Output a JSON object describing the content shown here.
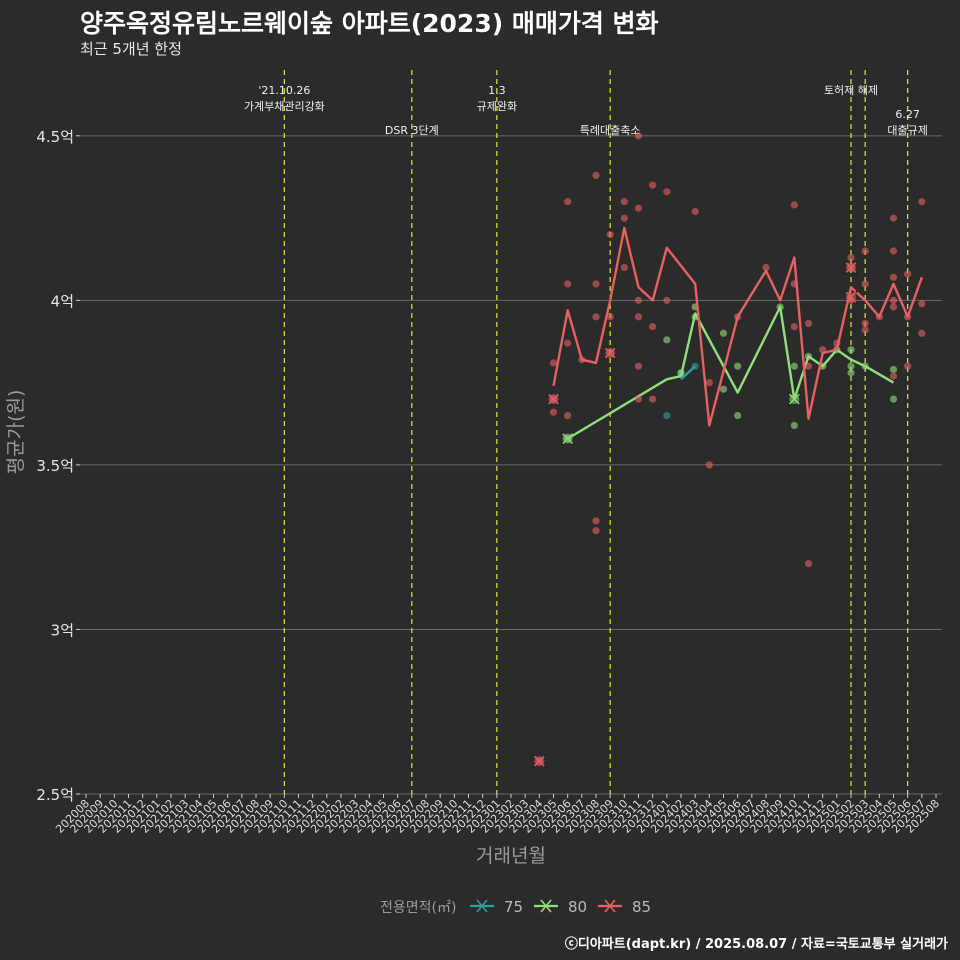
{
  "header": {
    "title": "양주옥정유림노르웨이숲 아파트(2023) 매매가격 변화",
    "subtitle": "최근 5개년 한정"
  },
  "footer": {
    "caption": "ⓒ디아파트(dapt.kr) / 2025.08.07 / 자료=국토교통부 실거래가"
  },
  "colors": {
    "background": "#2b2b2b",
    "grid": "#6a6a6a",
    "event_line": "#e8e82a",
    "s75": "#2b9e9e",
    "s80": "#8fe07a",
    "s85": "#e86060"
  },
  "chart_data": {
    "type": "line",
    "xlabel": "거래년월",
    "ylabel": "평균가(원)",
    "ylim": [
      2.5,
      4.7
    ],
    "yticks": [
      {
        "value": 2.5,
        "label": "2.5억"
      },
      {
        "value": 3.0,
        "label": "3억"
      },
      {
        "value": 3.5,
        "label": "3.5억"
      },
      {
        "value": 4.0,
        "label": "4억"
      },
      {
        "value": 4.5,
        "label": "4.5억"
      }
    ],
    "x": [
      "202008",
      "202009",
      "202010",
      "202011",
      "202012",
      "202101",
      "202102",
      "202103",
      "202104",
      "202105",
      "202106",
      "202107",
      "202108",
      "202109",
      "202110",
      "202111",
      "202112",
      "202201",
      "202202",
      "202203",
      "202204",
      "202205",
      "202206",
      "202207",
      "202208",
      "202209",
      "202210",
      "202211",
      "202212",
      "202301",
      "202302",
      "202303",
      "202304",
      "202305",
      "202306",
      "202307",
      "202308",
      "202309",
      "202310",
      "202311",
      "202312",
      "202401",
      "202402",
      "202403",
      "202404",
      "202405",
      "202406",
      "202407",
      "202408",
      "202409",
      "202410",
      "202411",
      "202412",
      "202501",
      "202502",
      "202503",
      "202504",
      "202505",
      "202506",
      "202507",
      "202508"
    ],
    "events": [
      {
        "month": "202110",
        "label": [
          "'21.10.26",
          "가계부채관리강화"
        ],
        "level": 1
      },
      {
        "month": "202207",
        "label": [
          "DSR 3단계"
        ],
        "level": 2
      },
      {
        "month": "202301",
        "label": [
          "1.3",
          "규제완화"
        ],
        "level": 1
      },
      {
        "month": "202309",
        "label": [
          "특례대출축소"
        ],
        "level": 2
      },
      {
        "month": "202502",
        "label": [
          "토허제 해제"
        ],
        "level": 1
      },
      {
        "month": "202503",
        "label": [],
        "level": 1
      },
      {
        "month": "202506",
        "label": [
          "6.27",
          "대출규제"
        ],
        "level": 2
      }
    ],
    "legend": {
      "title": "전용면적(㎡)",
      "position": "bottom"
    },
    "series": [
      {
        "name": "75",
        "color": "#2b9e9e",
        "line": [
          [
            "202402",
            3.76
          ],
          [
            "202403",
            3.8
          ]
        ],
        "points": [
          [
            "202401",
            3.65
          ],
          [
            "202402",
            3.78
          ],
          [
            "202403",
            3.8
          ]
        ],
        "crosses": []
      },
      {
        "name": "80",
        "color": "#8fe07a",
        "line": [
          [
            "202306",
            3.58
          ],
          [
            "202401",
            3.76
          ],
          [
            "202402",
            3.77
          ],
          [
            "202403",
            3.96
          ],
          [
            "202406",
            3.72
          ],
          [
            "202409",
            3.98
          ],
          [
            "202410",
            3.7
          ],
          [
            "202411",
            3.83
          ],
          [
            "202412",
            3.8
          ],
          [
            "202501",
            3.85
          ],
          [
            "202502",
            3.82
          ],
          [
            "202503",
            3.8
          ],
          [
            "202505",
            3.75
          ]
        ],
        "points": [
          [
            "202306",
            3.58
          ],
          [
            "202401",
            3.88
          ],
          [
            "202402",
            3.78
          ],
          [
            "202403",
            3.95
          ],
          [
            "202403",
            3.98
          ],
          [
            "202405",
            3.9
          ],
          [
            "202405",
            3.73
          ],
          [
            "202406",
            3.8
          ],
          [
            "202406",
            3.65
          ],
          [
            "202409",
            3.98
          ],
          [
            "202410",
            3.62
          ],
          [
            "202410",
            3.8
          ],
          [
            "202411",
            3.83
          ],
          [
            "202412",
            3.8
          ],
          [
            "202501",
            3.85
          ],
          [
            "202502",
            3.8
          ],
          [
            "202502",
            3.78
          ],
          [
            "202502",
            3.85
          ],
          [
            "202503",
            3.8
          ],
          [
            "202505",
            3.79
          ],
          [
            "202505",
            3.7
          ]
        ],
        "crosses": [
          [
            "202306",
            3.58
          ],
          [
            "202410",
            3.7
          ]
        ]
      },
      {
        "name": "85",
        "color": "#e86060",
        "line": [
          [
            "202305",
            3.74
          ],
          [
            "202306",
            3.97
          ],
          [
            "202307",
            3.82
          ],
          [
            "202308",
            3.81
          ],
          [
            "202309",
            4.0
          ],
          [
            "202310",
            4.22
          ],
          [
            "202311",
            4.04
          ],
          [
            "202312",
            4.0
          ],
          [
            "202401",
            4.16
          ],
          [
            "202403",
            4.05
          ],
          [
            "202404",
            3.62
          ],
          [
            "202406",
            3.95
          ],
          [
            "202408",
            4.09
          ],
          [
            "202409",
            4.0
          ],
          [
            "202410",
            4.13
          ],
          [
            "202411",
            3.64
          ],
          [
            "202412",
            3.84
          ],
          [
            "202501",
            3.85
          ],
          [
            "202502",
            4.04
          ],
          [
            "202503",
            4.0
          ],
          [
            "202504",
            3.95
          ],
          [
            "202505",
            4.05
          ],
          [
            "202506",
            3.95
          ],
          [
            "202507",
            4.07
          ]
        ],
        "points": [
          [
            "202304",
            2.6
          ],
          [
            "202305",
            3.81
          ],
          [
            "202305",
            3.7
          ],
          [
            "202305",
            3.66
          ],
          [
            "202306",
            4.3
          ],
          [
            "202306",
            4.05
          ],
          [
            "202306",
            3.87
          ],
          [
            "202306",
            3.65
          ],
          [
            "202307",
            3.82
          ],
          [
            "202308",
            4.38
          ],
          [
            "202308",
            4.05
          ],
          [
            "202308",
            3.95
          ],
          [
            "202308",
            3.33
          ],
          [
            "202308",
            3.3
          ],
          [
            "202309",
            4.2
          ],
          [
            "202309",
            3.95
          ],
          [
            "202309",
            3.84
          ],
          [
            "202310",
            4.3
          ],
          [
            "202310",
            4.25
          ],
          [
            "202310",
            4.1
          ],
          [
            "202311",
            4.5
          ],
          [
            "202311",
            4.28
          ],
          [
            "202311",
            4.0
          ],
          [
            "202311",
            3.95
          ],
          [
            "202311",
            3.8
          ],
          [
            "202311",
            3.7
          ],
          [
            "202312",
            4.35
          ],
          [
            "202312",
            3.92
          ],
          [
            "202312",
            3.7
          ],
          [
            "202401",
            4.33
          ],
          [
            "202401",
            4.0
          ],
          [
            "202403",
            4.27
          ],
          [
            "202404",
            3.75
          ],
          [
            "202404",
            3.5
          ],
          [
            "202406",
            3.95
          ],
          [
            "202408",
            4.1
          ],
          [
            "202410",
            4.29
          ],
          [
            "202410",
            4.05
          ],
          [
            "202410",
            3.92
          ],
          [
            "202411",
            3.93
          ],
          [
            "202411",
            3.8
          ],
          [
            "202411",
            3.2
          ],
          [
            "202412",
            3.85
          ],
          [
            "202501",
            3.87
          ],
          [
            "202502",
            4.13
          ],
          [
            "202502",
            4.1
          ],
          [
            "202502",
            4.0
          ],
          [
            "202503",
            4.15
          ],
          [
            "202503",
            4.05
          ],
          [
            "202503",
            3.93
          ],
          [
            "202503",
            3.91
          ],
          [
            "202504",
            3.95
          ],
          [
            "202505",
            4.25
          ],
          [
            "202505",
            4.15
          ],
          [
            "202505",
            4.07
          ],
          [
            "202505",
            4.0
          ],
          [
            "202505",
            3.98
          ],
          [
            "202505",
            3.77
          ],
          [
            "202506",
            4.08
          ],
          [
            "202506",
            3.95
          ],
          [
            "202506",
            3.8
          ],
          [
            "202507",
            4.3
          ],
          [
            "202507",
            3.99
          ],
          [
            "202507",
            3.9
          ]
        ],
        "crosses": [
          [
            "202304",
            2.6
          ],
          [
            "202305",
            3.7
          ],
          [
            "202309",
            3.84
          ],
          [
            "202502",
            4.1
          ],
          [
            "202502",
            4.01
          ]
        ]
      }
    ]
  }
}
